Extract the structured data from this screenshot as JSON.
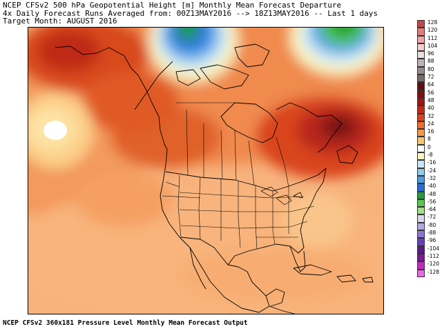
{
  "header": {
    "line1": "NCEP CFSv2 500 hPa Geopotential Height [m] Monthly Mean Forecast Departure",
    "line2": "4x Daily Forecast Runs Averaged from: 00Z13MAY2016 --> 18Z13MAY2016 -- Last 1 days",
    "line3": "Target Month: AUGUST 2016"
  },
  "footer": "NCEP CFSv2 360x181 Pressure Level Monthly Mean Forecast Output",
  "colorbar": {
    "labels": [
      "128",
      "120",
      "112",
      "104",
      "96",
      "88",
      "80",
      "72",
      "64",
      "56",
      "48",
      "40",
      "32",
      "24",
      "16",
      "8",
      "0",
      "-8",
      "-16",
      "-24",
      "-32",
      "-40",
      "-48",
      "-56",
      "-64",
      "-72",
      "-80",
      "-88",
      "-96",
      "-104",
      "-112",
      "-120",
      "-128"
    ],
    "colors": [
      "#c4484a",
      "#e37b7f",
      "#f2a6a6",
      "#f7cdcd",
      "#e5e1e1",
      "#bdb3b3",
      "#9a8a8a",
      "#7a6a6a",
      "#5c1010",
      "#7a1212",
      "#a01616",
      "#c12a1a",
      "#d9441e",
      "#ef6d2c",
      "#f79a48",
      "#fbc56e",
      "#ffffff",
      "#fbf5c0",
      "#c7e6f6",
      "#92cbee",
      "#4d9ee6",
      "#2b6ad6",
      "#1f9e3a",
      "#55c94a",
      "#a6e08a",
      "#d9d6ee",
      "#b2a8e2",
      "#8a78d4",
      "#6a40b8",
      "#5a1a8a",
      "#7a1a9a",
      "#c32bc0",
      "#e86ae2"
    ]
  },
  "map": {
    "region": "North America",
    "features": [
      "coastlines",
      "country borders",
      "US state borders",
      "Canadian province borders"
    ]
  }
}
